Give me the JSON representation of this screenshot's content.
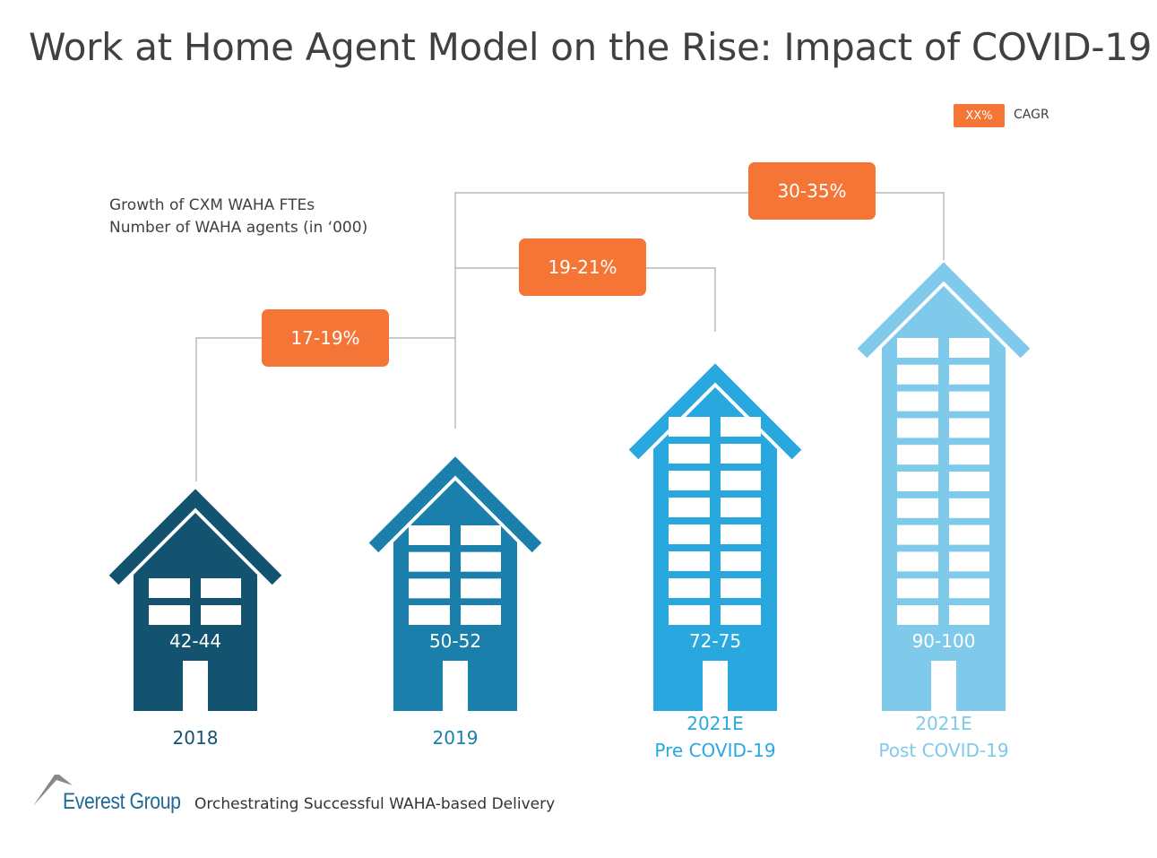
{
  "title": "Work at Home Agent Model on the Rise: Impact of COVID-19",
  "subtitle_lines": [
    "Growth of CXM WAHA FTEs",
    "Number of WAHA agents (in ‘000)"
  ],
  "legend": {
    "badge": "XX%",
    "label": "CAGR",
    "color": "#f47535"
  },
  "chart_data": {
    "type": "bar",
    "title": "Work at Home Agent Model on the Rise: Impact of COVID-19",
    "ylabel": "Number of WAHA agents (in ‘000)",
    "categories": [
      {
        "line1": "2018",
        "line2": ""
      },
      {
        "line1": "2019",
        "line2": ""
      },
      {
        "line1": "2021E",
        "line2": "Pre COVID-19"
      },
      {
        "line1": "2021E",
        "line2": "Post COVID-19"
      }
    ],
    "value_labels": [
      "42-44",
      "50-52",
      "72-75",
      "90-100"
    ],
    "values": [
      [
        42,
        44
      ],
      [
        50,
        52
      ],
      [
        72,
        75
      ],
      [
        90,
        100
      ]
    ],
    "colors": [
      "#14536f",
      "#1a7fab",
      "#29a8e0",
      "#7fc9eb"
    ],
    "cagr": [
      {
        "from": "2018",
        "to": "2019",
        "label": "17-19%"
      },
      {
        "from": "2019",
        "to": "2021E Pre COVID-19",
        "label": "19-21%"
      },
      {
        "from": "2019",
        "to": "2021E Post COVID-19",
        "label": "30-35%"
      }
    ]
  },
  "footer": {
    "logo": "Everest Group",
    "tagline": "Orchestrating Successful WAHA-based Delivery"
  }
}
